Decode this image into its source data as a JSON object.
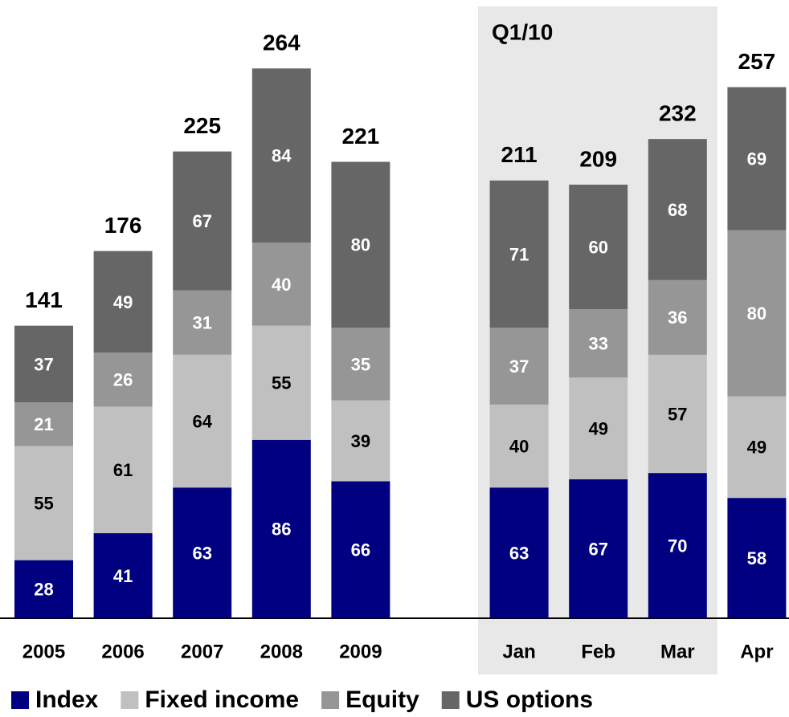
{
  "chart_data": {
    "type": "stacked_bar",
    "annotation": "Q1/10",
    "categories": [
      "2005",
      "2006",
      "2007",
      "2008",
      "2009",
      "Jan",
      "Feb",
      "Mar",
      "Apr"
    ],
    "series": [
      {
        "name": "Index",
        "color": "#000080",
        "label_color": "#ffffff",
        "values": [
          28,
          41,
          63,
          86,
          66,
          63,
          67,
          70,
          58
        ]
      },
      {
        "name": "Fixed income",
        "color": "#c0c0c0",
        "label_color": "#000000",
        "values": [
          55,
          61,
          64,
          55,
          39,
          40,
          49,
          57,
          49
        ]
      },
      {
        "name": "Equity",
        "color": "#969696",
        "label_color": "#ffffff",
        "values": [
          21,
          26,
          31,
          40,
          35,
          37,
          33,
          36,
          80
        ]
      },
      {
        "name": "US options",
        "color": "#666666",
        "label_color": "#ffffff",
        "values": [
          37,
          49,
          67,
          84,
          80,
          71,
          60,
          68,
          69
        ]
      }
    ],
    "totals": [
      141,
      176,
      225,
      264,
      221,
      211,
      209,
      232,
      257
    ],
    "ylim": [
      0,
      298
    ]
  }
}
